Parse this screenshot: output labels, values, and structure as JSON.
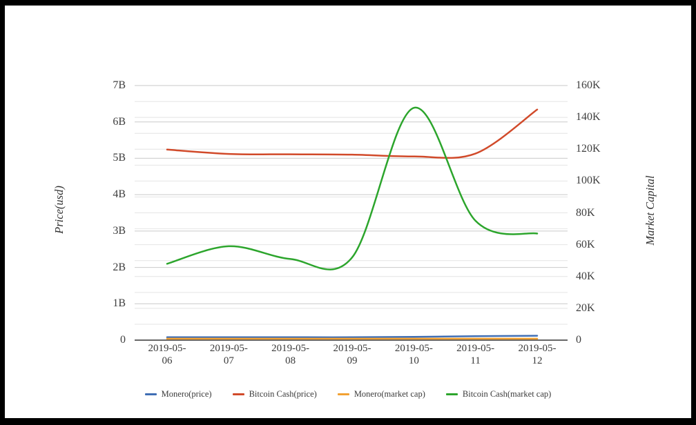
{
  "chart_data": {
    "type": "line",
    "title": "",
    "x_categories": [
      "2019-05-06",
      "2019-05-07",
      "2019-05-08",
      "2019-05-09",
      "2019-05-10",
      "2019-05-11",
      "2019-05-12"
    ],
    "series": [
      {
        "name": "Monero(price)",
        "axis": "left",
        "color": "#3f6eb4",
        "values": [
          0.08,
          0.08,
          0.08,
          0.08,
          0.09,
          0.11,
          0.12
        ]
      },
      {
        "name": "Bitcoin Cash(price)",
        "axis": "left",
        "color": "#d14a2a",
        "values": [
          5.24,
          5.12,
          5.11,
          5.1,
          5.05,
          5.13,
          6.34
        ]
      },
      {
        "name": "Monero(market cap)",
        "axis": "right",
        "color": "#f2a132",
        "values": [
          0.9,
          0.9,
          0.9,
          0.9,
          0.9,
          0.9,
          0.9
        ]
      },
      {
        "name": "Bitcoin Cash(market cap)",
        "axis": "right",
        "color": "#2ca52c",
        "values": [
          48,
          59,
          51,
          52,
          146,
          75,
          67
        ]
      }
    ],
    "axes": {
      "left": {
        "title": "Price(usd)",
        "unit": "B",
        "min": 0,
        "max": 7,
        "tick_step": 1,
        "tick_labels": [
          "0",
          "1B",
          "2B",
          "3B",
          "4B",
          "5B",
          "6B",
          "7B"
        ]
      },
      "right": {
        "title": "Market Capital",
        "unit": "K",
        "min": 0,
        "max": 160,
        "tick_step": 20,
        "tick_labels": [
          "0",
          "20K",
          "40K",
          "60K",
          "80K",
          "100K",
          "120K",
          "140K",
          "160K"
        ]
      }
    },
    "grid": true,
    "legend_position": "bottom",
    "smoothing": "spline"
  },
  "styles": {
    "page_background": "#ffffff",
    "frame_color": "#000000",
    "grid_minor_color": "#e4e4e4",
    "grid_major_color": "#c9c9c9",
    "axis_line_color": "#333333",
    "tick_text_color": "#3e3e3e"
  }
}
